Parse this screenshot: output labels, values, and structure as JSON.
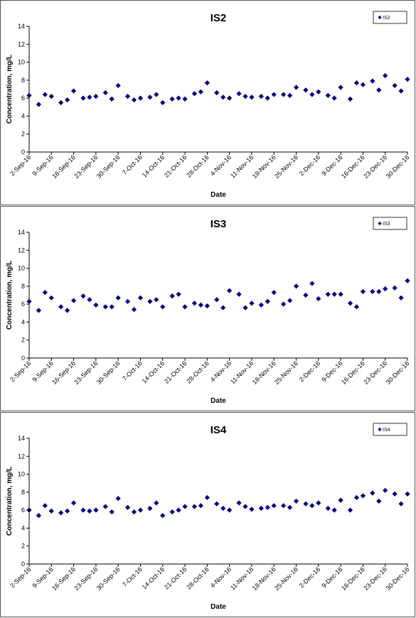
{
  "chart_data": [
    {
      "type": "scatter",
      "title": "IS2",
      "xlabel": "Date",
      "ylabel": "Concentration, mg/L",
      "ylim": [
        0,
        14
      ],
      "yticks": [
        0,
        2,
        4,
        6,
        8,
        10,
        12,
        14
      ],
      "xlim": [
        "2016-09-02",
        "2016-12-30"
      ],
      "xticks": [
        "2-Sep-16",
        "9-Sep-16",
        "16-Sep-16",
        "23-Sep-16",
        "30-Sep-16",
        "7-Oct-16",
        "14-Oct-16",
        "21-Oct-16",
        "28-Oct-16",
        "4-Nov-16",
        "11-Nov-16",
        "18-Nov-16",
        "25-Nov-16",
        "2-Dec-16",
        "9-Dec-16",
        "16-Dec-16",
        "23-Dec-16",
        "30-Dec-16"
      ],
      "grid": false,
      "legend_position": "top-right",
      "marker_color": "#000080",
      "series": [
        {
          "name": "IS2",
          "x": [
            "2016-09-02",
            "2016-09-05",
            "2016-09-07",
            "2016-09-09",
            "2016-09-12",
            "2016-09-14",
            "2016-09-16",
            "2016-09-19",
            "2016-09-21",
            "2016-09-23",
            "2016-09-26",
            "2016-09-28",
            "2016-09-30",
            "2016-10-03",
            "2016-10-05",
            "2016-10-07",
            "2016-10-10",
            "2016-10-12",
            "2016-10-14",
            "2016-10-17",
            "2016-10-19",
            "2016-10-21",
            "2016-10-24",
            "2016-10-26",
            "2016-10-28",
            "2016-10-31",
            "2016-11-02",
            "2016-11-04",
            "2016-11-07",
            "2016-11-09",
            "2016-11-11",
            "2016-11-14",
            "2016-11-16",
            "2016-11-18",
            "2016-11-21",
            "2016-11-23",
            "2016-11-25",
            "2016-11-28",
            "2016-11-30",
            "2016-12-02",
            "2016-12-05",
            "2016-12-07",
            "2016-12-09",
            "2016-12-12",
            "2016-12-14",
            "2016-12-16",
            "2016-12-19",
            "2016-12-21",
            "2016-12-23",
            "2016-12-26",
            "2016-12-28",
            "2016-12-30"
          ],
          "y": [
            6.3,
            5.3,
            6.4,
            6.2,
            5.5,
            5.8,
            6.8,
            6.0,
            6.1,
            6.2,
            6.6,
            5.9,
            7.4,
            6.2,
            5.8,
            6.0,
            6.1,
            6.4,
            5.5,
            5.9,
            6.0,
            5.9,
            6.5,
            6.7,
            7.7,
            6.6,
            6.1,
            6.0,
            6.5,
            6.2,
            6.1,
            6.2,
            6.0,
            6.4,
            6.4,
            6.3,
            7.2,
            6.9,
            6.4,
            6.7,
            6.3,
            6.0,
            7.2,
            5.9,
            7.7,
            7.5,
            7.9,
            6.9,
            8.5,
            7.4,
            6.8,
            8.1
          ]
        }
      ]
    },
    {
      "type": "scatter",
      "title": "IS3",
      "xlabel": "Date",
      "ylabel": "Concentration, mg/L",
      "ylim": [
        0,
        14
      ],
      "yticks": [
        0,
        2,
        4,
        6,
        8,
        10,
        12,
        14
      ],
      "xlim": [
        "2016-09-02",
        "2016-12-30"
      ],
      "xticks": [
        "2-Sep-16",
        "9-Sep-16",
        "16-Sep-16",
        "23-Sep-16",
        "30-Sep-16",
        "7-Oct-16",
        "14-Oct-16",
        "21-Oct-16",
        "28-Oct-16",
        "4-Nov-16",
        "11-Nov-16",
        "18-Nov-16",
        "25-Nov-16",
        "2-Dec-16",
        "9-Dec-16",
        "16-Dec-16",
        "23-Dec-16",
        "30-Dec-16"
      ],
      "grid": false,
      "legend_position": "top-right",
      "marker_color": "#000080",
      "series": [
        {
          "name": "IS3",
          "x": [
            "2016-09-02",
            "2016-09-05",
            "2016-09-07",
            "2016-09-09",
            "2016-09-12",
            "2016-09-14",
            "2016-09-16",
            "2016-09-19",
            "2016-09-21",
            "2016-09-23",
            "2016-09-26",
            "2016-09-28",
            "2016-09-30",
            "2016-10-03",
            "2016-10-05",
            "2016-10-07",
            "2016-10-10",
            "2016-10-12",
            "2016-10-14",
            "2016-10-17",
            "2016-10-19",
            "2016-10-21",
            "2016-10-24",
            "2016-10-26",
            "2016-10-28",
            "2016-10-31",
            "2016-11-02",
            "2016-11-04",
            "2016-11-07",
            "2016-11-09",
            "2016-11-11",
            "2016-11-14",
            "2016-11-16",
            "2016-11-18",
            "2016-11-21",
            "2016-11-23",
            "2016-11-25",
            "2016-11-28",
            "2016-11-30",
            "2016-12-02",
            "2016-12-05",
            "2016-12-07",
            "2016-12-09",
            "2016-12-12",
            "2016-12-14",
            "2016-12-16",
            "2016-12-19",
            "2016-12-21",
            "2016-12-23",
            "2016-12-26",
            "2016-12-28",
            "2016-12-30"
          ],
          "y": [
            6.3,
            5.3,
            7.3,
            6.7,
            5.7,
            5.3,
            6.4,
            6.9,
            6.5,
            5.9,
            5.7,
            5.7,
            6.7,
            6.3,
            5.4,
            6.7,
            6.3,
            6.5,
            5.7,
            6.9,
            7.1,
            5.7,
            6.1,
            5.9,
            5.8,
            6.5,
            5.6,
            7.5,
            7.1,
            5.6,
            6.1,
            5.9,
            6.3,
            7.3,
            6.0,
            6.4,
            8.0,
            7.0,
            8.3,
            6.6,
            7.1,
            7.1,
            7.1,
            6.1,
            5.7,
            7.4,
            7.4,
            7.4,
            7.7,
            7.8,
            6.7,
            8.6
          ]
        }
      ]
    },
    {
      "type": "scatter",
      "title": "IS4",
      "xlabel": "Date",
      "ylabel": "Concentration, mg/L",
      "ylim": [
        0,
        14
      ],
      "yticks": [
        0,
        2,
        4,
        6,
        8,
        10,
        12,
        14
      ],
      "xlim": [
        "2016-09-02",
        "2016-12-30"
      ],
      "xticks": [
        "2-Sep-16",
        "9-Sep-16",
        "16-Sep-16",
        "23-Sep-16",
        "30-Sep-16",
        "7-Oct-16",
        "14-Oct-16",
        "21-Oct-16",
        "28-Oct-16",
        "4-Nov-16",
        "11-Nov-16",
        "18-Nov-16",
        "25-Nov-16",
        "2-Dec-16",
        "9-Dec-16",
        "16-Dec-16",
        "23-Dec-16",
        "30-Dec-16"
      ],
      "grid": false,
      "legend_position": "top-right",
      "marker_color": "#000080",
      "series": [
        {
          "name": "IS4",
          "x": [
            "2016-09-02",
            "2016-09-05",
            "2016-09-07",
            "2016-09-09",
            "2016-09-12",
            "2016-09-14",
            "2016-09-16",
            "2016-09-19",
            "2016-09-21",
            "2016-09-23",
            "2016-09-26",
            "2016-09-28",
            "2016-09-30",
            "2016-10-03",
            "2016-10-05",
            "2016-10-07",
            "2016-10-10",
            "2016-10-12",
            "2016-10-14",
            "2016-10-17",
            "2016-10-19",
            "2016-10-21",
            "2016-10-24",
            "2016-10-26",
            "2016-10-28",
            "2016-10-31",
            "2016-11-02",
            "2016-11-04",
            "2016-11-07",
            "2016-11-09",
            "2016-11-11",
            "2016-11-14",
            "2016-11-16",
            "2016-11-18",
            "2016-11-21",
            "2016-11-23",
            "2016-11-25",
            "2016-11-28",
            "2016-11-30",
            "2016-12-02",
            "2016-12-05",
            "2016-12-07",
            "2016-12-09",
            "2016-12-12",
            "2016-12-14",
            "2016-12-16",
            "2016-12-19",
            "2016-12-21",
            "2016-12-23",
            "2016-12-26",
            "2016-12-28",
            "2016-12-30"
          ],
          "y": [
            6.0,
            5.4,
            6.5,
            5.9,
            5.7,
            5.9,
            6.8,
            6.0,
            5.9,
            6.0,
            6.4,
            5.8,
            7.3,
            6.3,
            5.8,
            6.0,
            6.2,
            6.8,
            5.4,
            5.8,
            6.0,
            6.4,
            6.4,
            6.5,
            7.4,
            6.7,
            6.2,
            6.0,
            6.8,
            6.4,
            6.1,
            6.2,
            6.3,
            6.5,
            6.5,
            6.3,
            7.0,
            6.7,
            6.5,
            6.8,
            6.2,
            6.0,
            7.1,
            6.0,
            7.4,
            7.6,
            7.9,
            7.0,
            8.2,
            7.8,
            6.7,
            7.8
          ]
        }
      ]
    }
  ]
}
